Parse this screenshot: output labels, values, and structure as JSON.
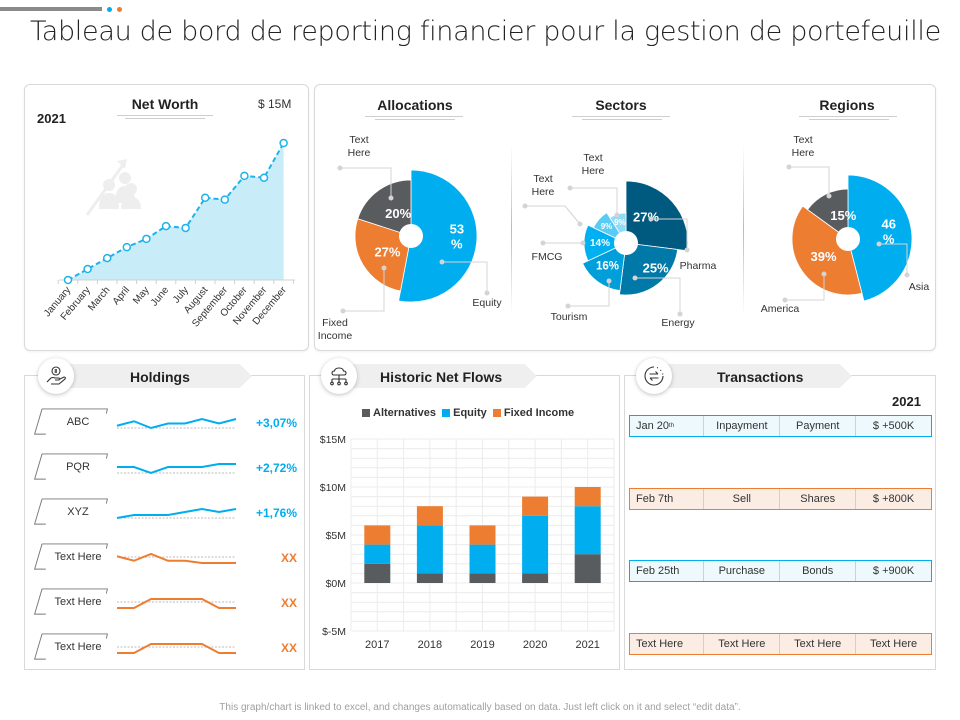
{
  "page": {
    "title": "Tableau de bord de reporting financier pour la gestion de portefeuille",
    "footer": "This graph/chart is linked to excel, and changes automatically based on data. Just left click on it and select “edit data”."
  },
  "colors": {
    "blue": "#00aeef",
    "orange": "#ed7d31",
    "gray": "#595c5e",
    "light_blue_fill": "#c9ecf9",
    "sector_pharma": "#005a80",
    "sector_energy": "#0079a8",
    "sector_tourism": "#009fd9",
    "sector_fmcg": "#00b0f0",
    "sector_other1": "#59ccf5",
    "sector_other2": "#8fdcf8"
  },
  "net_worth": {
    "title": "Net Worth",
    "year": "2021",
    "max_label": "$ 15M",
    "icon": "people-growth-icon"
  },
  "allocations": {
    "title": "Allocations"
  },
  "sectors": {
    "title": "Sectors"
  },
  "regions": {
    "title": "Regions"
  },
  "holdings": {
    "title": "Holdings",
    "icon": "hand-money-icon",
    "rows": [
      {
        "label": "ABC",
        "change": "+3,07%",
        "trend": "up",
        "spark": [
          2,
          4,
          1,
          3,
          3,
          5,
          3,
          5
        ]
      },
      {
        "label": "PQR",
        "change": "+2,72%",
        "trend": "up",
        "spark": [
          3,
          3,
          1,
          3,
          3,
          3,
          4,
          4
        ]
      },
      {
        "label": "XYZ",
        "change": "+1,76%",
        "trend": "up",
        "spark": [
          1,
          2,
          2,
          2,
          3,
          4,
          3,
          4
        ]
      },
      {
        "label": "Text Here",
        "change": "XX",
        "trend": "down",
        "spark": [
          3,
          1,
          4,
          1,
          1,
          0,
          0,
          0
        ]
      },
      {
        "label": "Text Here",
        "change": "XX",
        "trend": "down",
        "spark": [
          0,
          0,
          3,
          3,
          3,
          3,
          0,
          0
        ]
      },
      {
        "label": "Text Here",
        "change": "XX",
        "trend": "down",
        "spark": [
          0,
          0,
          3,
          3,
          3,
          3,
          0,
          0
        ]
      }
    ]
  },
  "net_flows": {
    "title": "Historic Net Flows",
    "icon": "cloud-network-icon"
  },
  "transactions": {
    "title": "Transactions",
    "icon": "exchange-icon",
    "year": "2021",
    "rows": [
      {
        "date": "Jan 20",
        "date_sup": "th",
        "type": "Inpayment",
        "asset": "Payment",
        "amount": "$ +500K",
        "style": "blue"
      },
      {
        "date": "Feb 7th",
        "date_sup": "",
        "type": "Sell",
        "asset": "Shares",
        "amount": "$ +800K",
        "style": "orange"
      },
      {
        "date": "Feb 25th",
        "date_sup": "",
        "type": "Purchase",
        "asset": "Bonds",
        "amount": "$ +900K",
        "style": "blue"
      },
      {
        "date": "Text Here",
        "date_sup": "",
        "type": "Text Here",
        "asset": "Text Here",
        "amount": "Text Here",
        "style": "orange"
      }
    ]
  },
  "chart_data": [
    {
      "id": "net_worth",
      "type": "area",
      "title": "Net Worth",
      "x": [
        "January",
        "February",
        "March",
        "April",
        "May",
        "June",
        "July",
        "August",
        "September",
        "October",
        "November",
        "December"
      ],
      "values": [
        0,
        1.2,
        2.4,
        3.6,
        4.5,
        5.9,
        5.7,
        9.0,
        8.8,
        11.4,
        11.2,
        15
      ],
      "ylabel": "$M",
      "ylim": [
        0,
        15
      ],
      "grid": false
    },
    {
      "id": "allocations",
      "type": "pie",
      "title": "Allocations",
      "slices": [
        {
          "label": "Equity",
          "value": 53,
          "display": "53 %",
          "color": "#00aeef"
        },
        {
          "label": "Fixed Income",
          "value": 27,
          "display": "27%",
          "color": "#ed7d31"
        },
        {
          "label": "Text Here",
          "value": 20,
          "display": "20%",
          "color": "#595c5e"
        }
      ]
    },
    {
      "id": "sectors",
      "type": "pie",
      "title": "Sectors",
      "slices": [
        {
          "label": "Pharma",
          "value": 27,
          "display": "27%",
          "color": "#005a80"
        },
        {
          "label": "Energy",
          "value": 25,
          "display": "25%",
          "color": "#0079a8"
        },
        {
          "label": "Tourism",
          "value": 16,
          "display": "16%",
          "color": "#009fd9"
        },
        {
          "label": "FMCG",
          "value": 14,
          "display": "14%",
          "color": "#00b0f0"
        },
        {
          "label": "Text Here",
          "value": 9,
          "display": "9%",
          "color": "#59ccf5"
        },
        {
          "label": "Text Here",
          "value": 9,
          "display": "9%",
          "color": "#8fdcf8"
        }
      ]
    },
    {
      "id": "regions",
      "type": "pie",
      "title": "Regions",
      "slices": [
        {
          "label": "Asia",
          "value": 46,
          "display": "46 %",
          "color": "#00aeef"
        },
        {
          "label": "America",
          "value": 39,
          "display": "39%",
          "color": "#ed7d31"
        },
        {
          "label": "Text Here",
          "value": 15,
          "display": "15%",
          "color": "#595c5e"
        }
      ]
    },
    {
      "id": "net_flows",
      "type": "bar",
      "stacked": true,
      "title": "Historic Net Flows",
      "categories": [
        "2017",
        "2018",
        "2019",
        "2020",
        "2021"
      ],
      "series": [
        {
          "name": "Alternatives",
          "values": [
            2,
            1,
            1,
            1,
            3
          ],
          "color": "#595c5e"
        },
        {
          "name": "Equity",
          "values": [
            2,
            5,
            3,
            6,
            5
          ],
          "color": "#00aeef"
        },
        {
          "name": "Fixed Income",
          "values": [
            2,
            2,
            2,
            2,
            2
          ],
          "color": "#ed7d31"
        }
      ],
      "yticks": [
        "$-5M",
        "$0M",
        "$5M",
        "$10M",
        "$15M"
      ],
      "ylim": [
        -5,
        15
      ],
      "ylabel": "",
      "xlabel": "",
      "legend": "top",
      "grid": true
    }
  ]
}
